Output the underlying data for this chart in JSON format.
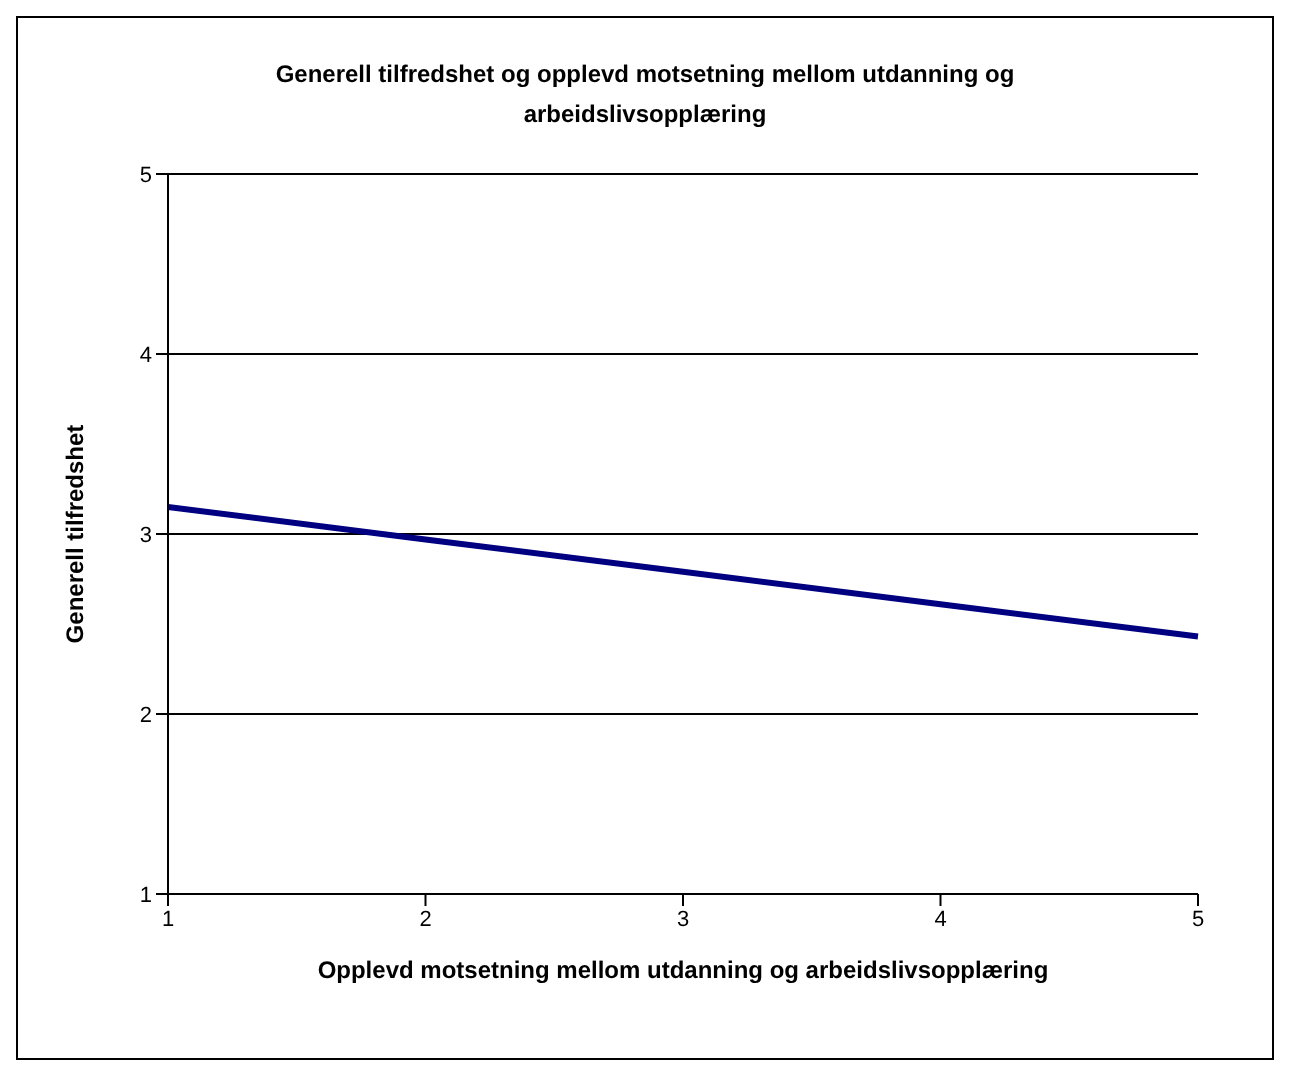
{
  "chart_data": {
    "type": "line",
    "title": "Generell tilfredshet og opplevd motsetning mellom utdanning og arbeidslivsopplæring",
    "xlabel": "Opplevd motsetning mellom utdanning og arbeidslivsopplæring",
    "ylabel": "Generell tilfredshet",
    "categories": [
      "1",
      "2",
      "3",
      "4",
      "5"
    ],
    "series": [
      {
        "color": "#000080",
        "values": [
          3.15,
          2.97,
          2.79,
          2.61,
          2.43
        ]
      }
    ],
    "ylim": [
      1,
      5
    ],
    "yticks": [
      1,
      2,
      3,
      4,
      5
    ],
    "grid": "y",
    "legend": false,
    "marker": "none",
    "line_style": "solid"
  }
}
